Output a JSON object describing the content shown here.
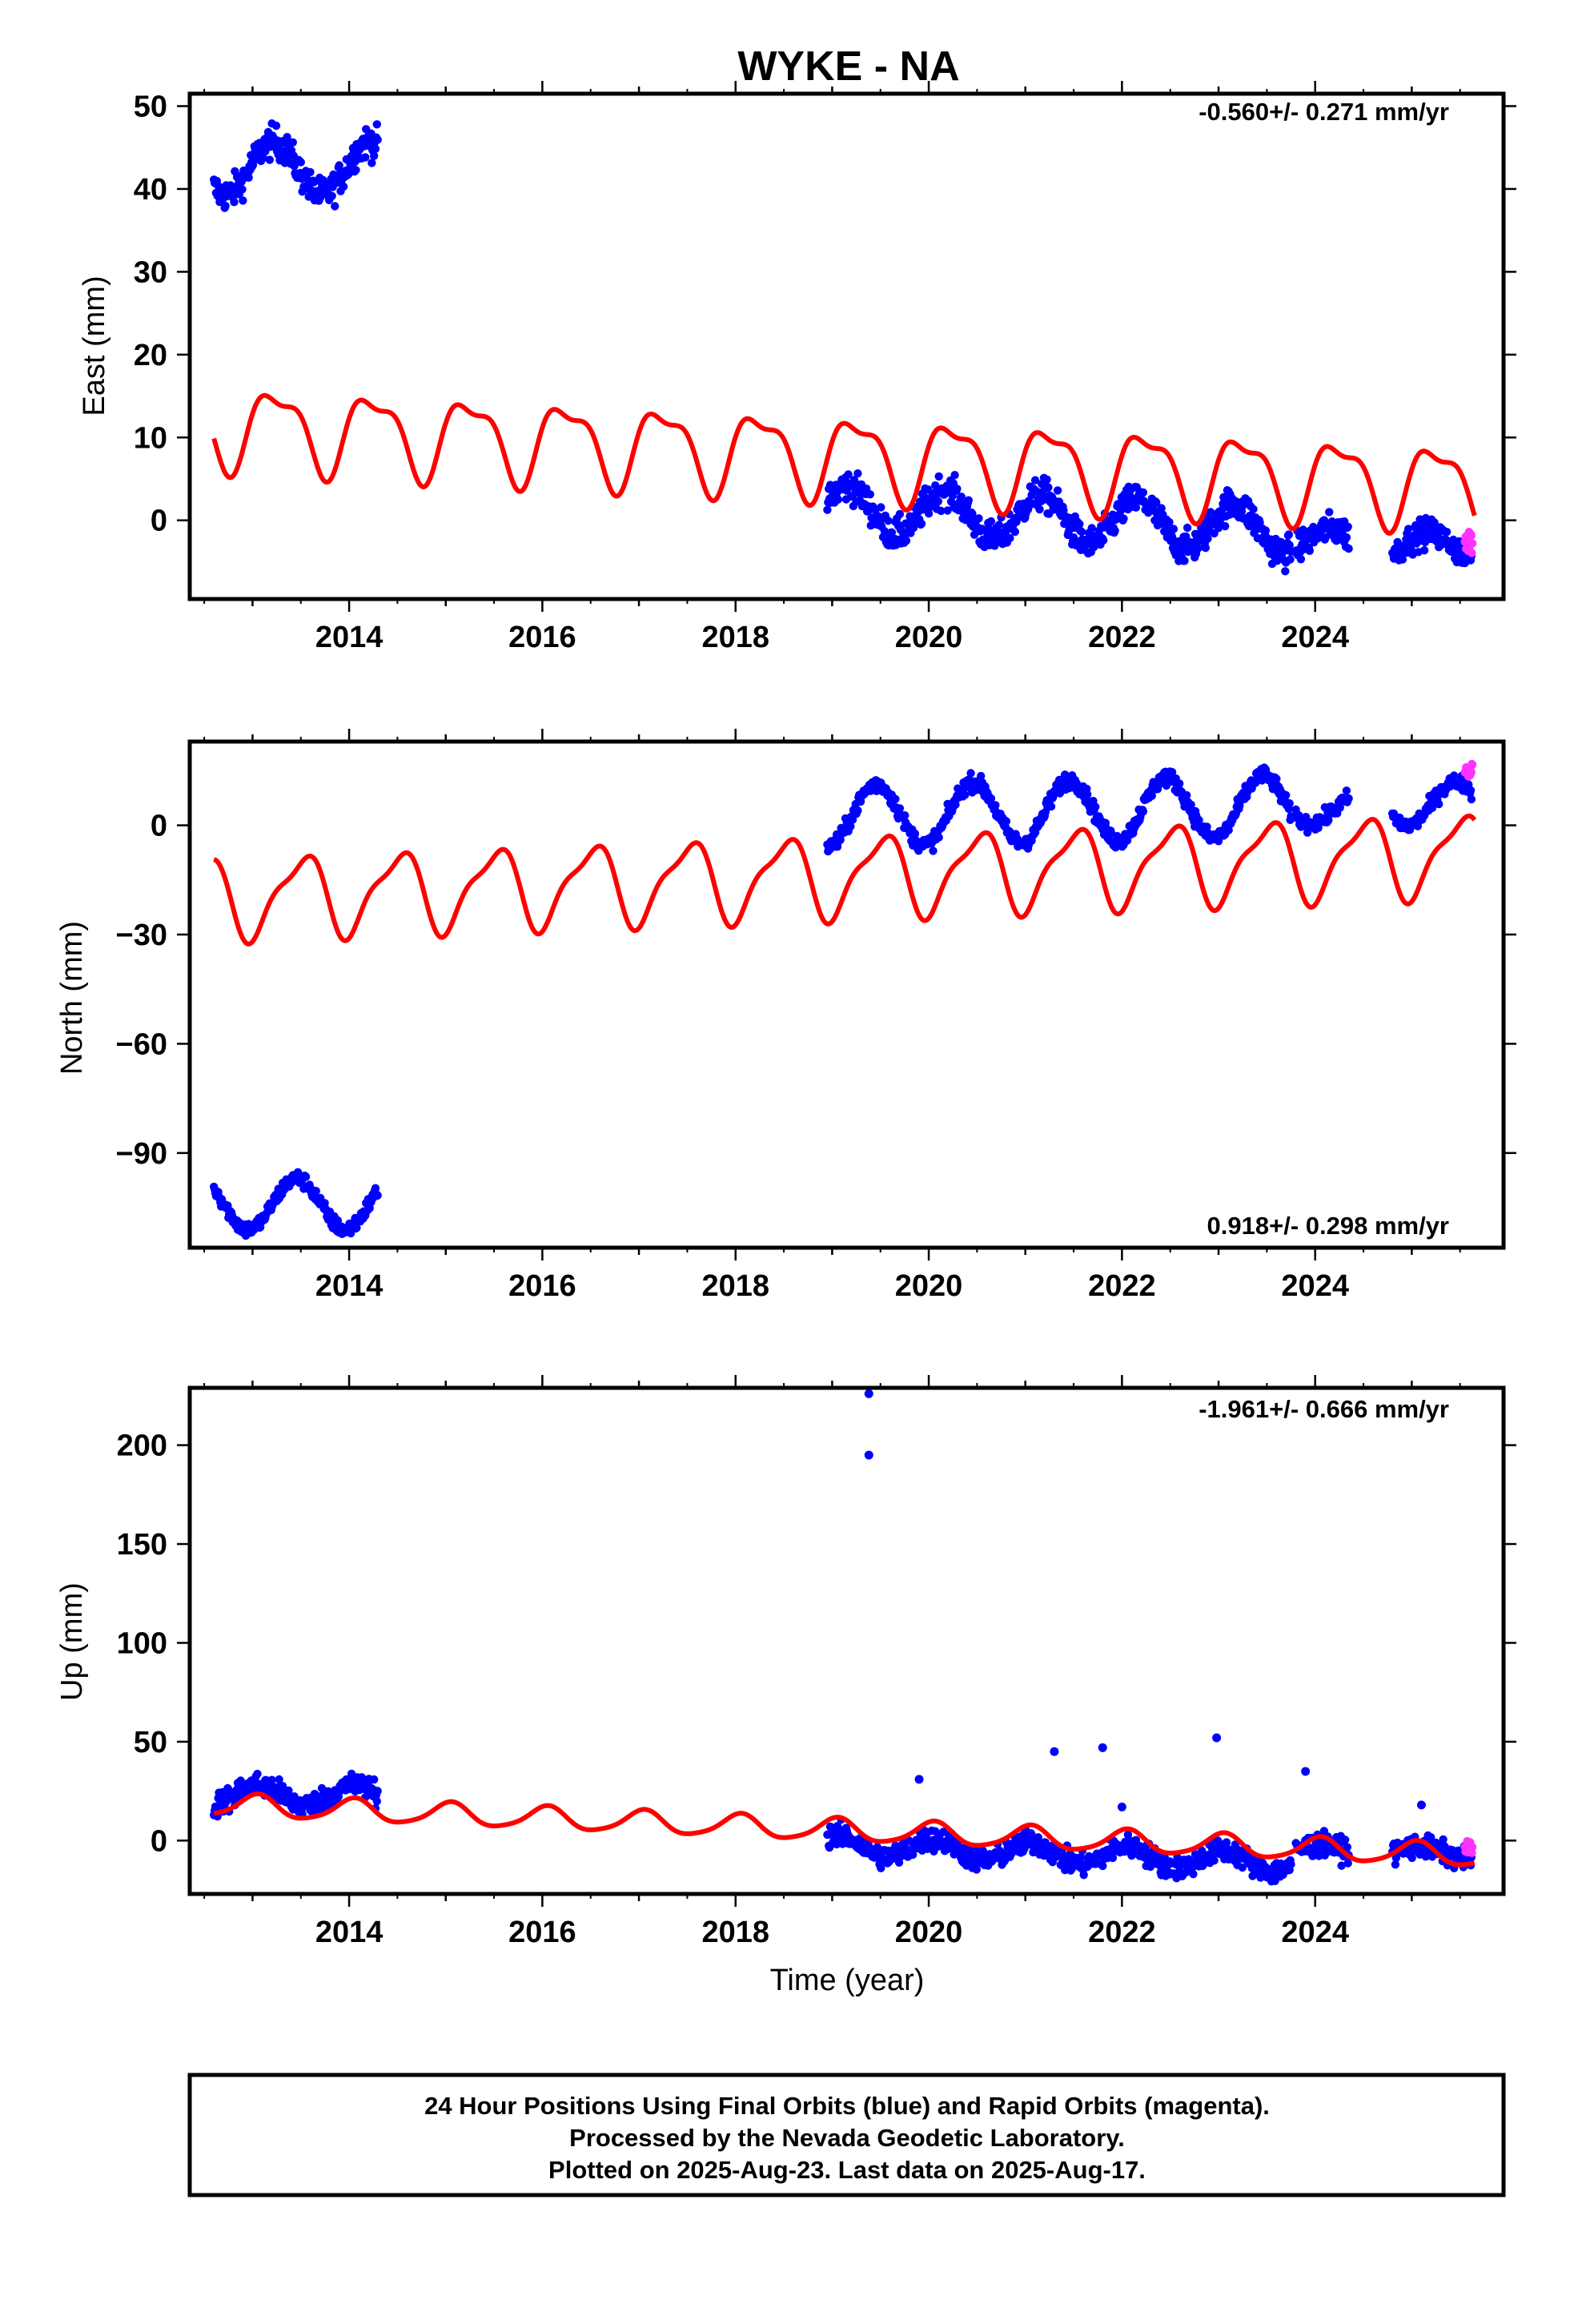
{
  "title": "WYKE - NA",
  "footer": {
    "line1": "24 Hour Positions Using Final Orbits (blue) and Rapid Orbits (magenta).",
    "line2": "Processed by the Nevada Geodetic Laboratory.",
    "line3": "Plotted on 2025-Aug-23. Last data on 2025-Aug-17."
  },
  "colors": {
    "final": "#0000ff",
    "rapid": "#ff33ff",
    "model": "#ff0000",
    "frame": "#000000"
  },
  "chart_data": [
    {
      "type": "scatter",
      "name": "east",
      "ylabel": "East (mm)",
      "xlabel": "",
      "rate": "-0.560+/- 0.271 mm/yr",
      "rate_position": "top-right",
      "xlim": [
        2012.35,
        2025.95
      ],
      "ylim": [
        -9.5,
        51.5
      ],
      "xticks": [
        2014,
        2016,
        2018,
        2020,
        2022,
        2024
      ],
      "xtick_labels": [
        "2014",
        "2016",
        "2018",
        "2020",
        "2022",
        "2024"
      ],
      "yticks": [
        0,
        10,
        20,
        30,
        40,
        50
      ],
      "ytick_labels": [
        "0",
        "10",
        "20",
        "30",
        "40",
        "50"
      ],
      "data_segments": [
        {
          "start": 2012.6,
          "end": 2014.3,
          "offset": 42.5,
          "amplitude": 3.2,
          "phase": 0.2,
          "noise": 1.4,
          "trend": 0,
          "spacing": 0.0075
        },
        {
          "start": 2018.95,
          "end": 2023.75,
          "offset": 1.5,
          "amplitude": 2.8,
          "phase": 0.55,
          "noise": 1.4,
          "trend": -0.55,
          "spacing": 0.0075
        },
        {
          "start": 2023.8,
          "end": 2024.35,
          "offset": -2.5,
          "amplitude": 1.5,
          "phase": 0.55,
          "noise": 1.3,
          "trend": 0,
          "spacing": 0.0075
        },
        {
          "start": 2024.8,
          "end": 2025.62,
          "offset": -3.0,
          "amplitude": 1.5,
          "phase": 0.55,
          "noise": 1.2,
          "trend": 0,
          "spacing": 0.0075
        }
      ],
      "rapid_segment": {
        "start": 2025.55,
        "end": 2025.63,
        "offset": -2.5,
        "noise": 1.2
      },
      "model": {
        "offset": 11.5,
        "trend": -0.56,
        "ref_year": 2012.6,
        "annual_amp": 4.6,
        "annual_phase": 0.0,
        "semiannual_amp": 1.7,
        "semiannual_phase": 1.2
      }
    },
    {
      "type": "scatter",
      "name": "north",
      "ylabel": "North (mm)",
      "xlabel": "",
      "rate": "0.918+/- 0.298 mm/yr",
      "rate_position": "bottom-right",
      "xlim": [
        2012.35,
        2025.95
      ],
      "ylim": [
        -116,
        23
      ],
      "xticks": [
        2014,
        2016,
        2018,
        2020,
        2022,
        2024
      ],
      "xtick_labels": [
        "2014",
        "2016",
        "2018",
        "2020",
        "2022",
        "2024"
      ],
      "yticks": [
        -90,
        -60,
        -30,
        0
      ],
      "ytick_labels": [
        "−90",
        "−60",
        "−30",
        "0"
      ],
      "data_segments": [
        {
          "start": 2012.6,
          "end": 2014.3,
          "offset": -104,
          "amplitude": 7,
          "phase": -1.3,
          "noise": 1.5,
          "trend": 0,
          "spacing": 0.0075
        },
        {
          "start": 2018.95,
          "end": 2023.75,
          "offset": 2.5,
          "amplitude": 8.5,
          "phase": -1.3,
          "noise": 1.6,
          "trend": 0.6,
          "spacing": 0.0075
        },
        {
          "start": 2023.8,
          "end": 2024.35,
          "offset": 4.5,
          "amplitude": 4,
          "phase": -1.3,
          "noise": 1.5,
          "trend": 0,
          "spacing": 0.0075
        },
        {
          "start": 2024.8,
          "end": 2025.62,
          "offset": 6,
          "amplitude": 6,
          "phase": -1.3,
          "noise": 1.5,
          "trend": 0,
          "spacing": 0.0075
        }
      ],
      "rapid_segment": {
        "start": 2025.55,
        "end": 2025.63,
        "offset": 15,
        "noise": 1.8
      },
      "model": {
        "offset": -20,
        "trend": 0.918,
        "ref_year": 2012.6,
        "annual_amp": 10.5,
        "annual_phase": -1.6,
        "semiannual_amp": 3.2,
        "semiannual_phase": -0.6
      }
    },
    {
      "type": "scatter",
      "name": "up",
      "ylabel": "Up (mm)",
      "xlabel": "Time (year)",
      "rate": "-1.961+/- 0.666 mm/yr",
      "rate_position": "top-right",
      "xlim": [
        2012.35,
        2025.95
      ],
      "ylim": [
        -27,
        229
      ],
      "xticks": [
        2014,
        2016,
        2018,
        2020,
        2022,
        2024
      ],
      "xtick_labels": [
        "2014",
        "2016",
        "2018",
        "2020",
        "2022",
        "2024"
      ],
      "yticks": [
        0,
        50,
        100,
        150,
        200
      ],
      "ytick_labels": [
        "0",
        "50",
        "100",
        "150",
        "200"
      ],
      "data_segments": [
        {
          "start": 2012.6,
          "end": 2014.3,
          "offset": 23,
          "amplitude": 5,
          "phase": 1.2,
          "noise": 4.5,
          "trend": 0,
          "spacing": 0.0075
        },
        {
          "start": 2018.95,
          "end": 2023.75,
          "offset": -2,
          "amplitude": 5,
          "phase": 1.2,
          "noise": 4.2,
          "trend": -1.9,
          "spacing": 0.0075
        },
        {
          "start": 2023.8,
          "end": 2024.35,
          "offset": -5,
          "amplitude": 3,
          "phase": 1.2,
          "noise": 4,
          "trend": 0,
          "spacing": 0.0075
        },
        {
          "start": 2024.8,
          "end": 2025.62,
          "offset": -6,
          "amplitude": 3,
          "phase": 1.2,
          "noise": 4,
          "trend": 0,
          "spacing": 0.0075
        }
      ],
      "outliers": [
        {
          "x": 2019.38,
          "y": 226
        },
        {
          "x": 2019.38,
          "y": 195
        },
        {
          "x": 2021.3,
          "y": 45
        },
        {
          "x": 2021.8,
          "y": 47
        },
        {
          "x": 2022.98,
          "y": 52
        },
        {
          "x": 2023.9,
          "y": 35
        },
        {
          "x": 2019.9,
          "y": 31
        },
        {
          "x": 2022.0,
          "y": 17
        },
        {
          "x": 2025.1,
          "y": 18
        }
      ],
      "rapid_segment": {
        "start": 2025.55,
        "end": 2025.63,
        "offset": -4,
        "noise": 3
      },
      "model": {
        "offset": 18,
        "trend": -1.961,
        "ref_year": 2012.6,
        "annual_amp": 5.6,
        "annual_phase": 1.3,
        "semiannual_amp": 1.0,
        "semiannual_phase": 0.5
      }
    }
  ]
}
